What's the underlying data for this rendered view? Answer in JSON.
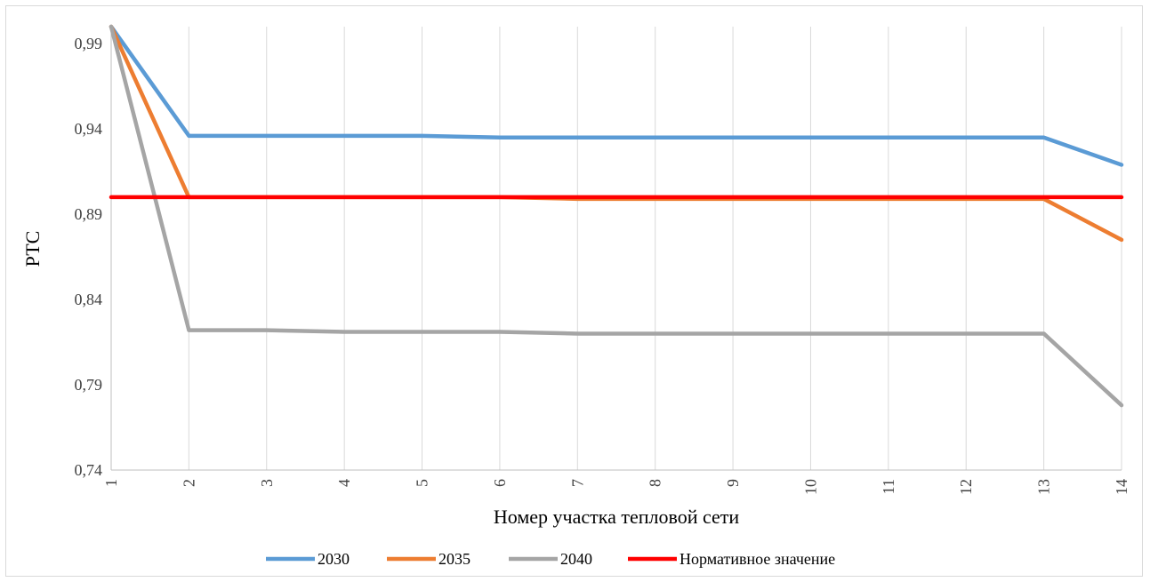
{
  "chart_data": {
    "type": "line",
    "title": "",
    "xlabel": "Номер участка тепловой сети",
    "ylabel": "РТС",
    "x": [
      1,
      2,
      3,
      4,
      5,
      6,
      7,
      8,
      9,
      10,
      11,
      12,
      13,
      14
    ],
    "x_tick_labels": [
      "1",
      "2",
      "3",
      "4",
      "5",
      "6",
      "7",
      "8",
      "9",
      "10",
      "11",
      "12",
      "13",
      "14"
    ],
    "y_tick_labels": [
      "0,74",
      "0,79",
      "0,84",
      "0,89",
      "0,94",
      "0,99"
    ],
    "y_ticks": [
      0.74,
      0.79,
      0.84,
      0.89,
      0.94,
      0.99
    ],
    "ylim": [
      0.74,
      1.0
    ],
    "grid": "vertical",
    "legend_position": "bottom",
    "series": [
      {
        "name": "2030",
        "color": "#5b9bd5",
        "values": [
          1.0,
          0.936,
          0.936,
          0.936,
          0.936,
          0.935,
          0.935,
          0.935,
          0.935,
          0.935,
          0.935,
          0.935,
          0.935,
          0.919
        ]
      },
      {
        "name": "2035",
        "color": "#ed7d31",
        "values": [
          1.0,
          0.9,
          0.9,
          0.9,
          0.9,
          0.9,
          0.899,
          0.899,
          0.899,
          0.899,
          0.899,
          0.899,
          0.899,
          0.875
        ]
      },
      {
        "name": "2040",
        "color": "#a5a5a5",
        "values": [
          1.0,
          0.822,
          0.822,
          0.821,
          0.821,
          0.821,
          0.82,
          0.82,
          0.82,
          0.82,
          0.82,
          0.82,
          0.82,
          0.778
        ]
      },
      {
        "name": "Нормативное значение",
        "color": "#ff0000",
        "values": [
          0.9,
          0.9,
          0.9,
          0.9,
          0.9,
          0.9,
          0.9,
          0.9,
          0.9,
          0.9,
          0.9,
          0.9,
          0.9,
          0.9
        ]
      }
    ]
  }
}
